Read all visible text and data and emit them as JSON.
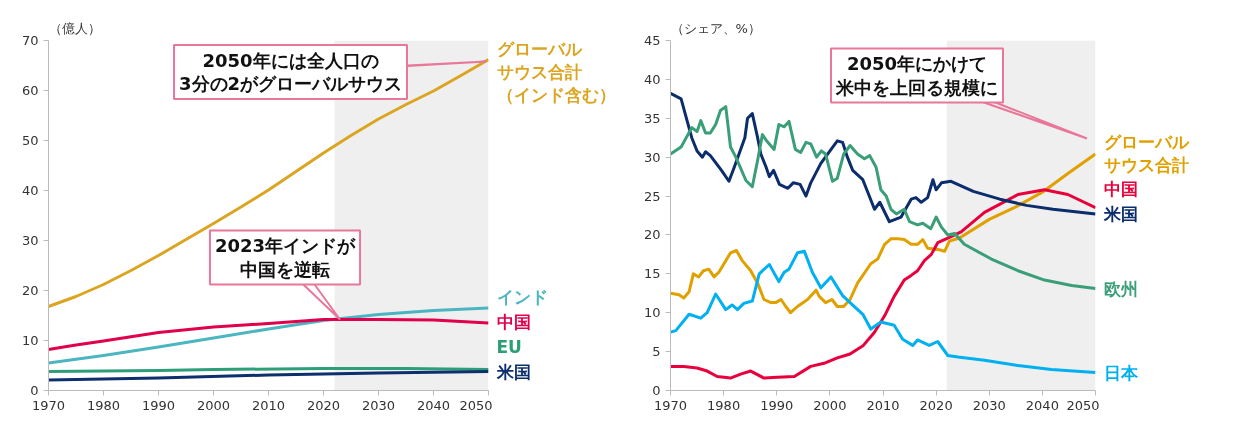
{
  "chart_data": [
    {
      "type": "line",
      "ylabel": "（億人）",
      "xlim": [
        1970,
        2050
      ],
      "ylim": [
        0,
        70
      ],
      "xticks": [
        1970,
        1980,
        1990,
        2000,
        2010,
        2020,
        2030,
        2040,
        2050
      ],
      "yticks": [
        0,
        10,
        20,
        30,
        40,
        50,
        60,
        70
      ],
      "grid": false,
      "bands": [
        {
          "axis": "x",
          "from": 2022,
          "to": 2050,
          "color": "#efefef"
        }
      ],
      "annotations": [
        "2050年には全人口の3分の2がグローバルサウス",
        {
          "text": "2023年インドが中国を逆転",
          "x": 2023,
          "y": 14.2
        }
      ],
      "series": [
        {
          "name": "グローバルサウス合計（インド含む）",
          "color": "#dba521",
          "x": [
            1970,
            1975,
            1980,
            1985,
            1990,
            1995,
            2000,
            2005,
            2010,
            2015,
            2020,
            2025,
            2030,
            2035,
            2040,
            2045,
            2050
          ],
          "values": [
            16.8,
            18.8,
            21.2,
            24,
            27,
            30.2,
            33.4,
            36.7,
            40.1,
            43.8,
            47.5,
            51,
            54.3,
            57.2,
            59.9,
            63,
            66.2
          ]
        },
        {
          "name": "インド",
          "color": "#4bb6c1",
          "x": [
            1970,
            1980,
            1990,
            2000,
            2010,
            2020,
            2030,
            2040,
            2050
          ],
          "values": [
            5.5,
            7,
            8.7,
            10.5,
            12.3,
            14,
            15.2,
            16,
            16.5
          ]
        },
        {
          "name": "中国",
          "color": "#e0004b",
          "x": [
            1970,
            1975,
            1980,
            1990,
            2000,
            2010,
            2020,
            2030,
            2040,
            2050
          ],
          "values": [
            8.2,
            9.1,
            9.9,
            11.6,
            12.7,
            13.4,
            14.2,
            14.2,
            14.1,
            13.5
          ]
        },
        {
          "name": "EU",
          "color": "#2e9e78",
          "x": [
            1970,
            1990,
            2000,
            2020,
            2035,
            2050
          ],
          "values": [
            3.8,
            4,
            4.2,
            4.4,
            4.4,
            4.2
          ]
        },
        {
          "name": "米国",
          "color": "#0d2f6e",
          "x": [
            1970,
            1990,
            2010,
            2030,
            2050
          ],
          "values": [
            2.1,
            2.5,
            3.1,
            3.5,
            3.8
          ]
        }
      ]
    },
    {
      "type": "line",
      "ylabel": "（シェア、%）",
      "xlim": [
        1970,
        2050
      ],
      "ylim": [
        0,
        45
      ],
      "xticks": [
        1970,
        1980,
        1990,
        2000,
        2010,
        2020,
        2030,
        2040,
        2050
      ],
      "yticks": [
        0,
        5,
        10,
        15,
        20,
        25,
        30,
        35,
        40,
        45
      ],
      "grid": false,
      "bands": [
        {
          "axis": "x",
          "from": 2022,
          "to": 2050,
          "color": "#efefef"
        }
      ],
      "annotations": [
        "2050年にかけて米中を上回る規模に"
      ],
      "series": [
        {
          "name": "グローバルサウス合計",
          "color": "#e0a000",
          "x": [
            1970,
            1971.6,
            1972.5,
            1973.5,
            1974.3,
            1975.3,
            1976.2,
            1977.2,
            1978.2,
            1979.1,
            1981.3,
            1982.4,
            1983.5,
            1985.1,
            1986.4,
            1987.6,
            1988.9,
            1989.8,
            1990.8,
            1991.7,
            1992.6,
            1993.9,
            1995.8,
            1997.4,
            1998,
            1999.2,
            2000.4,
            2001.4,
            2002.6,
            2003.8,
            2005.2,
            2007.7,
            2009,
            2010.3,
            2011.5,
            2012.8,
            2014,
            2015.3,
            2016.5,
            2017.5,
            2018.4,
            2020.6,
            2021.6,
            2022.5,
            2024.4,
            2030,
            2035,
            2040,
            2045,
            2050
          ],
          "values": [
            12.5,
            12.3,
            11.9,
            12.7,
            15,
            14.6,
            15.4,
            15.6,
            14.6,
            15.2,
            17.7,
            18,
            16.7,
            15.4,
            13.8,
            11.7,
            11.3,
            11.3,
            11.7,
            10.8,
            10,
            10.8,
            11.7,
            12.9,
            12.1,
            11.3,
            11.7,
            10.8,
            10.8,
            11.7,
            13.8,
            16.3,
            16.9,
            18.8,
            19.5,
            19.5,
            19.4,
            18.8,
            18.8,
            19.4,
            18.3,
            18.1,
            17.9,
            19.2,
            19.6,
            22,
            23.6,
            25.5,
            28,
            30.4
          ]
        },
        {
          "name": "中国",
          "color": "#e8003d",
          "x": [
            1970,
            1972.5,
            1975,
            1976.9,
            1978.8,
            1981.3,
            1983.2,
            1985.1,
            1987.6,
            1990.1,
            1993.3,
            1996.4,
            1998.9,
            2001.4,
            2003.8,
            2006.3,
            2008.4,
            2010.3,
            2012.1,
            2014,
            2015.3,
            2016.5,
            2017.8,
            2019.1,
            2020.3,
            2022.2,
            2024.7,
            2029.1,
            2035.4,
            2040.4,
            2044.8,
            2050
          ],
          "values": [
            3.1,
            3.1,
            2.9,
            2.5,
            1.8,
            1.6,
            2.1,
            2.5,
            1.6,
            1.7,
            1.8,
            3.1,
            3.5,
            4.2,
            4.7,
            5.8,
            7.5,
            9.6,
            12.1,
            14.2,
            14.8,
            15.4,
            16.7,
            17.5,
            19,
            19.6,
            20.4,
            22.9,
            25.2,
            25.8,
            25.2,
            23.5
          ]
        },
        {
          "name": "米国",
          "color": "#0c2d6b",
          "x": [
            1970,
            1972,
            1973,
            1974,
            1975,
            1976,
            1976.6,
            1977.5,
            1979.6,
            1981,
            1982,
            1984,
            1984.5,
            1985.4,
            1986.4,
            1987,
            1988,
            1988.6,
            1989.4,
            1990.5,
            1992.1,
            1993.1,
            1994.4,
            1995.5,
            1996.4,
            1998.3,
            2001.4,
            2002.4,
            2003.3,
            2004.3,
            2006.2,
            2008.4,
            2009.4,
            2011.2,
            2013.4,
            2015.3,
            2016.2,
            2017.2,
            2018.4,
            2019.4,
            2020,
            2021,
            2022.8,
            2027,
            2032,
            2037,
            2042,
            2050
          ],
          "values": [
            38.2,
            37.5,
            35,
            32.5,
            30.8,
            30,
            30.7,
            30.2,
            28.3,
            26.9,
            28.7,
            32.5,
            35,
            35.6,
            32.5,
            30.4,
            28.7,
            27.5,
            28.3,
            26.5,
            26,
            26.7,
            26.5,
            25,
            26.7,
            29.2,
            32.1,
            31.9,
            30,
            28.3,
            27.1,
            23.3,
            24.2,
            21.7,
            22.3,
            24.6,
            24.8,
            24.2,
            24.8,
            27.1,
            25.8,
            26.7,
            26.9,
            25.6,
            24.6,
            23.8,
            23.3,
            22.7
          ]
        },
        {
          "name": "欧州",
          "color": "#3a9e78",
          "x": [
            1970,
            1972,
            1974,
            1975,
            1975.7,
            1976.6,
            1977.5,
            1978.5,
            1979.4,
            1980.4,
            1981.3,
            1982.3,
            1984.2,
            1985.4,
            1986.4,
            1987.3,
            1988.2,
            1989.5,
            1990.4,
            1991.4,
            1992.3,
            1993.5,
            1994.5,
            1995.5,
            1996.4,
            1997.5,
            1998.4,
            1999.2,
            2000.5,
            2001.4,
            2002.6,
            2003.8,
            2005.2,
            2006.5,
            2007.5,
            2008.7,
            2009.6,
            2010.6,
            2011.5,
            2012.5,
            2014,
            2015,
            2016.5,
            2017.5,
            2019,
            2020,
            2021,
            2022.2,
            2023.5,
            2025.3,
            2030.4,
            2035.4,
            2040.4,
            2045.5,
            2050
          ],
          "values": [
            30.4,
            31.3,
            33.8,
            33.3,
            34.7,
            33.1,
            33.1,
            34.2,
            36,
            36.5,
            31.3,
            30,
            27,
            26.2,
            29.6,
            32.9,
            32,
            31,
            34.2,
            33.9,
            34.6,
            31,
            30.6,
            31.9,
            31.7,
            30,
            30.8,
            30.4,
            26.9,
            27.3,
            30.4,
            31.5,
            30.4,
            29.8,
            30.2,
            28.7,
            25.8,
            25,
            23.3,
            22.7,
            23.3,
            21.7,
            21.3,
            21.5,
            20.8,
            22.3,
            21,
            20,
            20.2,
            18.8,
            16.9,
            15.4,
            14.2,
            13.5,
            13.1
          ]
        },
        {
          "name": "日本",
          "color": "#00b0f0",
          "x": [
            1970,
            1971,
            1973.5,
            1975.7,
            1976.9,
            1978.5,
            1980.4,
            1981.6,
            1982.6,
            1983.8,
            1985.4,
            1986.7,
            1988.6,
            1990.4,
            1991.4,
            1992.3,
            1993.9,
            1995.2,
            1996.7,
            1998.3,
            2000.2,
            2002.4,
            2003.8,
            2006.2,
            2007.7,
            2009.6,
            2012.1,
            2013.7,
            2015.6,
            2016.5,
            2018.7,
            2020.3,
            2022.2,
            2024.1,
            2029.1,
            2035.4,
            2041.7,
            2050
          ],
          "values": [
            7.5,
            7.7,
            9.8,
            9.3,
            10,
            12.4,
            10.4,
            11,
            10.4,
            11.2,
            11.5,
            15,
            16.2,
            14,
            15.2,
            15.6,
            17.7,
            17.9,
            15.2,
            13.2,
            14.6,
            12.2,
            11.3,
            9.8,
            7.9,
            8.8,
            8.4,
            6.6,
            5.8,
            6.5,
            5.8,
            6.3,
            4.5,
            4.3,
            3.9,
            3.2,
            2.7,
            2.3
          ]
        }
      ]
    }
  ]
}
